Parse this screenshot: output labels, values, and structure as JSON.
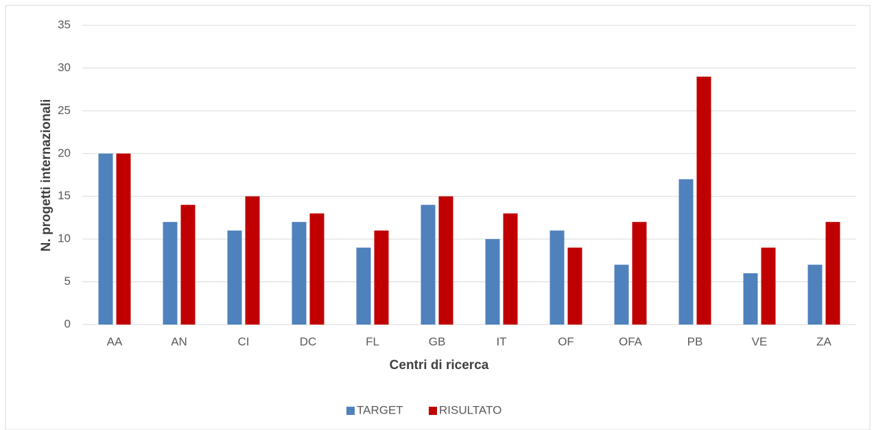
{
  "chart_data": {
    "type": "bar",
    "x_label": "Centri di ricerca",
    "y_label": "N. progetti internazionali",
    "categories": [
      "AA",
      "AN",
      "CI",
      "DC",
      "FL",
      "GB",
      "IT",
      "OF",
      "OFA",
      "PB",
      "VE",
      "ZA"
    ],
    "series": [
      {
        "name": "TARGET",
        "color": "#4f81bd",
        "values": [
          20,
          12,
          11,
          12,
          9,
          14,
          10,
          11,
          7,
          17,
          6,
          7
        ]
      },
      {
        "name": "RISULTATO",
        "color": "#c00000",
        "values": [
          20,
          14,
          15,
          13,
          11,
          15,
          13,
          9,
          12,
          29,
          9,
          12
        ]
      }
    ],
    "ylim": [
      0,
      35
    ],
    "yticks": [
      0,
      5,
      10,
      15,
      20,
      25,
      30,
      35
    ],
    "grid": true,
    "legend": "bottom"
  }
}
